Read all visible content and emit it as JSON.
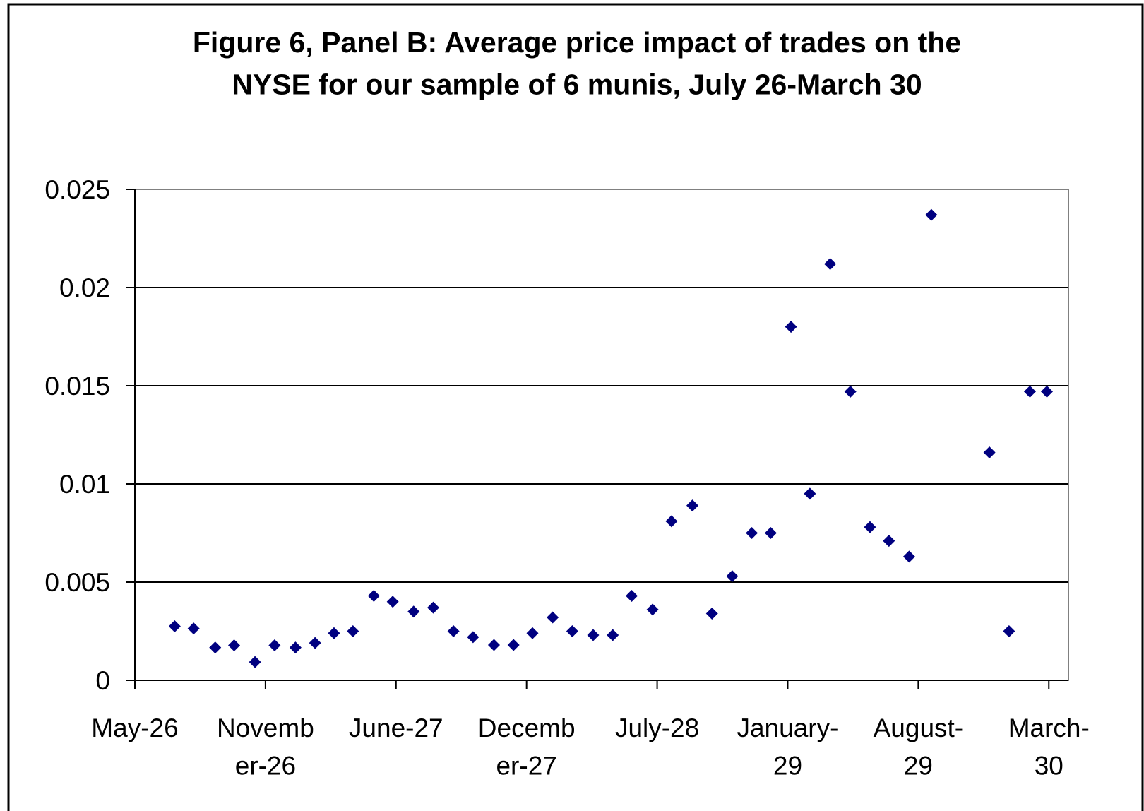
{
  "chart_data": {
    "type": "scatter",
    "title": "Figure 6, Panel B: Average price impact of trades on the\nNYSE for our sample of 6 munis, July 26-March 30",
    "color": "#000080",
    "marker": "diamond",
    "grid": true,
    "xlim": [
      0,
      1430
    ],
    "xticks": [
      {
        "value": 0,
        "label": "May-26"
      },
      {
        "value": 200,
        "label": "Novemb\ner-26"
      },
      {
        "value": 400,
        "label": "June-27"
      },
      {
        "value": 600,
        "label": "Decemb\ner-27"
      },
      {
        "value": 800,
        "label": "July-28"
      },
      {
        "value": 1000,
        "label": "January-\n29"
      },
      {
        "value": 1200,
        "label": "August-\n29"
      },
      {
        "value": 1400,
        "label": "March-\n30"
      }
    ],
    "ylim": [
      0,
      0.025
    ],
    "yticks": [
      0,
      0.005,
      0.01,
      0.015,
      0.02,
      0.025
    ],
    "x": [
      61,
      90,
      123,
      152,
      184,
      214,
      246,
      276,
      305,
      334,
      366,
      395,
      427,
      457,
      488,
      518,
      550,
      580,
      609,
      640,
      670,
      702,
      732,
      761,
      793,
      822,
      854,
      884,
      915,
      945,
      974,
      1005,
      1034,
      1065,
      1096,
      1126,
      1155,
      1186,
      1220,
      1309,
      1339,
      1371,
      1397
    ],
    "values": [
      0.00275,
      0.00264,
      0.00167,
      0.00178,
      0.00093,
      0.00178,
      0.00167,
      0.0019,
      0.0024,
      0.0025,
      0.0043,
      0.004,
      0.0035,
      0.0037,
      0.0025,
      0.0022,
      0.0018,
      0.0018,
      0.0024,
      0.0032,
      0.0025,
      0.0023,
      0.0023,
      0.0043,
      0.0036,
      0.0081,
      0.0089,
      0.0034,
      0.0053,
      0.0075,
      0.0075,
      0.018,
      0.0095,
      0.0212,
      0.0147,
      0.0078,
      0.0071,
      0.0063,
      0.0237,
      0.0116,
      0.0025,
      0.0147,
      0.0147
    ]
  }
}
